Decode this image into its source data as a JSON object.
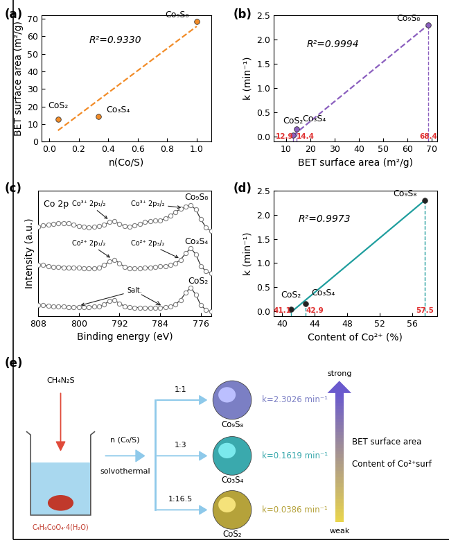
{
  "chart_data": [
    {
      "type": "scatter",
      "panel": "(a)",
      "x_label": "n(Co/S)",
      "y_label": "BET surface area (m²/g)",
      "x": [
        0.06,
        0.333,
        1.0
      ],
      "values": [
        12.9,
        14.4,
        68.4
      ],
      "point_labels": [
        "CoS₂",
        "Co₃S₄",
        "Co₉S₈"
      ],
      "color": "#f28c28",
      "marker": "o",
      "fit": {
        "x": [
          0.06,
          1.0
        ],
        "values": [
          6.4,
          65.7
        ],
        "color": "#f28c28",
        "line_style": "dashed"
      },
      "annotation": "R²=0.9330",
      "xlim": [
        -0.05,
        1.1
      ],
      "xticks": [
        0.0,
        0.2,
        0.4,
        0.6,
        0.8,
        1.0
      ],
      "ylim": [
        0,
        72
      ],
      "yticks": [
        0,
        10,
        20,
        30,
        40,
        50,
        60,
        70
      ]
    },
    {
      "type": "scatter",
      "panel": "(b)",
      "x_label": "BET surface area (m²/g)",
      "y_label": "k (min⁻¹)",
      "x": [
        12.9,
        14.4,
        68.4
      ],
      "values": [
        0.0386,
        0.1619,
        2.3026
      ],
      "point_labels": [
        "CoS₂",
        "Co₃S₄",
        "Co₉S₈"
      ],
      "color": "#8b5fbf",
      "marker": "o",
      "fit": {
        "x": [
          12.9,
          68.4
        ],
        "values": [
          0.03,
          2.3
        ],
        "color": "#8b5fbf",
        "line_style": "dashed"
      },
      "annotation": "R²=0.9994",
      "marked_x": [
        12.9,
        14.4,
        68.4
      ],
      "xlim": [
        5,
        72
      ],
      "xticks": [
        10,
        20,
        30,
        40,
        50,
        60,
        70
      ],
      "ylim": [
        -0.1,
        2.5
      ],
      "yticks": [
        0.0,
        0.5,
        1.0,
        1.5,
        2.0,
        2.5
      ]
    },
    {
      "type": "line",
      "panel": "(c)",
      "x_label": "Binding energy (eV)",
      "y_label": "Intensity (a.u.)",
      "tick_labels": "x",
      "marker": "o",
      "label": "Co 2p",
      "x": [
        808,
        807,
        806,
        805,
        804,
        803,
        802,
        801,
        800,
        799,
        798,
        797,
        796,
        795,
        794,
        793,
        792,
        791,
        790,
        789,
        788,
        787,
        786,
        785,
        784,
        783,
        782,
        781,
        780,
        779,
        778,
        777,
        776,
        775,
        774
      ],
      "series": [
        {
          "name": "Co₉S₈",
          "color": "#7f7f7f",
          "values": [
            10.0,
            10.1,
            10.2,
            10.3,
            10.4,
            10.4,
            10.35,
            10.2,
            10.05,
            9.95,
            9.9,
            9.95,
            10.05,
            10.2,
            10.5,
            10.6,
            10.3,
            10.05,
            10.0,
            10.1,
            10.3,
            10.5,
            10.6,
            10.65,
            10.7,
            10.9,
            11.2,
            11.6,
            12.0,
            12.2,
            12.4,
            11.9,
            10.8,
            9.9,
            9.5
          ]
        },
        {
          "name": "Co₃S₄",
          "color": "#7f7f7f",
          "values": [
            5.7,
            5.7,
            5.6,
            5.5,
            5.5,
            5.45,
            5.45,
            5.4,
            5.4,
            5.35,
            5.3,
            5.35,
            5.45,
            5.7,
            6.1,
            6.3,
            5.9,
            5.5,
            5.35,
            5.3,
            5.35,
            5.4,
            5.45,
            5.5,
            5.55,
            5.6,
            5.7,
            5.9,
            6.3,
            7.0,
            7.6,
            6.9,
            5.6,
            5.0,
            4.8
          ]
        },
        {
          "name": "CoS₂",
          "color": "#7f7f7f",
          "values": [
            1.2,
            1.2,
            1.15,
            1.1,
            1.1,
            1.05,
            1.0,
            1.0,
            1.0,
            1.0,
            1.0,
            1.05,
            1.1,
            1.3,
            1.7,
            1.8,
            1.4,
            1.1,
            1.0,
            0.95,
            0.95,
            0.9,
            0.9,
            0.9,
            0.95,
            1.0,
            1.1,
            1.3,
            1.8,
            2.6,
            3.2,
            2.4,
            1.2,
            0.7,
            0.5
          ]
        }
      ],
      "annotations": [
        "Co³⁺ 2p₁/₂",
        "Co³⁺ 2p₃/₂",
        "Co²⁺ 2p₁/₂",
        "Co²⁺ 2p₃/₂",
        "Salt."
      ],
      "xlim": [
        808,
        774
      ],
      "xticks": [
        808,
        800,
        792,
        784,
        776
      ],
      "ylim": [
        0,
        14
      ]
    },
    {
      "type": "scatter",
      "panel": "(d)",
      "x_label": "Content of Co²⁺ (%)",
      "y_label": "k (min⁻¹)",
      "x": [
        41.1,
        42.9,
        57.5
      ],
      "values": [
        0.0386,
        0.1619,
        2.3026
      ],
      "point_labels": [
        "CoS₂",
        "Co₃S₄",
        "Co₉S₈"
      ],
      "color": "#222222",
      "marker": "o",
      "fit": {
        "x": [
          41.1,
          57.5
        ],
        "values": [
          -0.02,
          2.3
        ],
        "color": "#1f9e9e",
        "line_style": "solid"
      },
      "annotation": "R²=0.9973",
      "marked_x": [
        41.1,
        42.9,
        57.5
      ],
      "xlim": [
        39,
        59
      ],
      "xticks": [
        40,
        44,
        48,
        52,
        56
      ],
      "ylim": [
        -0.1,
        2.5
      ],
      "yticks": [
        0.0,
        0.5,
        1.0,
        1.5,
        2.0,
        2.5
      ]
    }
  ],
  "diagram": {
    "panel": "(e)",
    "reagent": "CH₄N₂S",
    "precursor": "C₄H₆CoO₄·4(H₂O)",
    "ratio_label": "n (C₀/S)",
    "method": "solvothermal",
    "products": [
      {
        "ratio": "1:1",
        "name": "Co₉S₈",
        "k_label": "k=2.3026 min⁻¹",
        "color": "#7b7fc4"
      },
      {
        "ratio": "1:3",
        "name": "Co₃S₄",
        "k_label": "k=0.1619 min⁻¹",
        "color": "#3aa9ad"
      },
      {
        "ratio": "1:16.5",
        "name": "CoS₂",
        "k_label": "k=0.0386 min⁻¹",
        "color": "#b5a23a"
      }
    ],
    "trend": {
      "top": "strong",
      "bottom": "weak",
      "labels": [
        "BET surface area",
        "Content of Co²⁺surf"
      ]
    }
  }
}
